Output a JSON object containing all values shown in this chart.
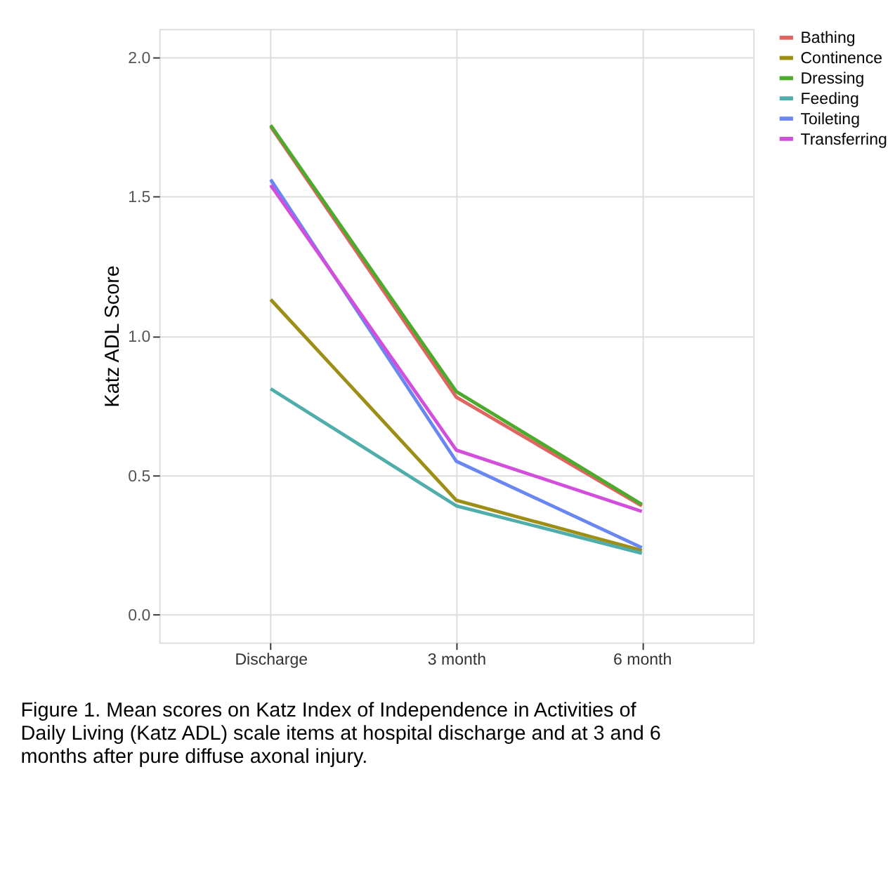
{
  "chart_data": {
    "type": "line",
    "ylabel": "Katz ADL Score",
    "categories": [
      "Discharge",
      "3 month",
      "6 month"
    ],
    "series": [
      {
        "name": "Bathing",
        "color": "#e0645f",
        "values": [
          1.75,
          0.78,
          0.39
        ]
      },
      {
        "name": "Continence",
        "color": "#9c8e17",
        "values": [
          1.13,
          0.41,
          0.23
        ]
      },
      {
        "name": "Dressing",
        "color": "#4caa2d",
        "values": [
          1.755,
          0.8,
          0.395
        ]
      },
      {
        "name": "Feeding",
        "color": "#4faeac",
        "values": [
          0.81,
          0.39,
          0.22
        ]
      },
      {
        "name": "Toileting",
        "color": "#6a86f2",
        "values": [
          1.56,
          0.55,
          0.24
        ]
      },
      {
        "name": "Transferring",
        "color": "#d24fdc",
        "values": [
          1.54,
          0.59,
          0.37
        ]
      }
    ],
    "ylim": [
      -0.1,
      2.1
    ],
    "yticks": [
      {
        "value": 0,
        "label": "0.0"
      },
      0.5,
      {
        "value": 1,
        "label": "1.0"
      },
      1.5,
      {
        "value": 2,
        "label": "2.0"
      }
    ],
    "grid": true,
    "legend": "right",
    "marker": "none",
    "line_style": "solid",
    "annotations": [
      "Figure 1.  Mean scores on Katz Index of Independence in Activities of Daily Living (Katz ADL) scale items at hospital discharge and at 3 and 6 months after pure diffuse axonal injury."
    ]
  }
}
